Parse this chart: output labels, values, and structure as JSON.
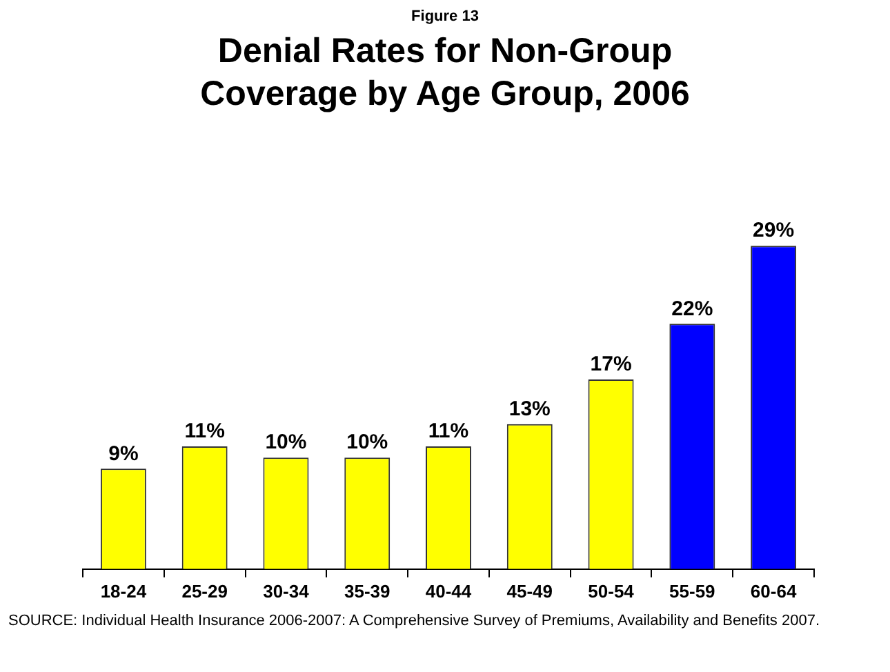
{
  "chart_data": {
    "type": "bar",
    "subtitle": "Figure 13",
    "title": "Denial Rates for Non-Group Coverage by Age Group, 2006",
    "categories": [
      "18-24",
      "25-29",
      "30-34",
      "35-39",
      "40-44",
      "45-49",
      "50-54",
      "55-59",
      "60-64"
    ],
    "values": [
      9,
      11,
      10,
      10,
      11,
      13,
      17,
      22,
      29
    ],
    "colors": [
      "#ffff00",
      "#ffff00",
      "#ffff00",
      "#ffff00",
      "#ffff00",
      "#ffff00",
      "#ffff00",
      "#0000ff",
      "#0000ff"
    ],
    "value_labels": [
      "9%",
      "11%",
      "10%",
      "10%",
      "11%",
      "13%",
      "17%",
      "22%",
      "29%"
    ],
    "annotations": [
      "SOURCE: Individual Health Insurance 2006-2007: A Comprehensive Survey of Premiums, Availability and Benefits 2007."
    ],
    "grid": false,
    "legend": false
  }
}
